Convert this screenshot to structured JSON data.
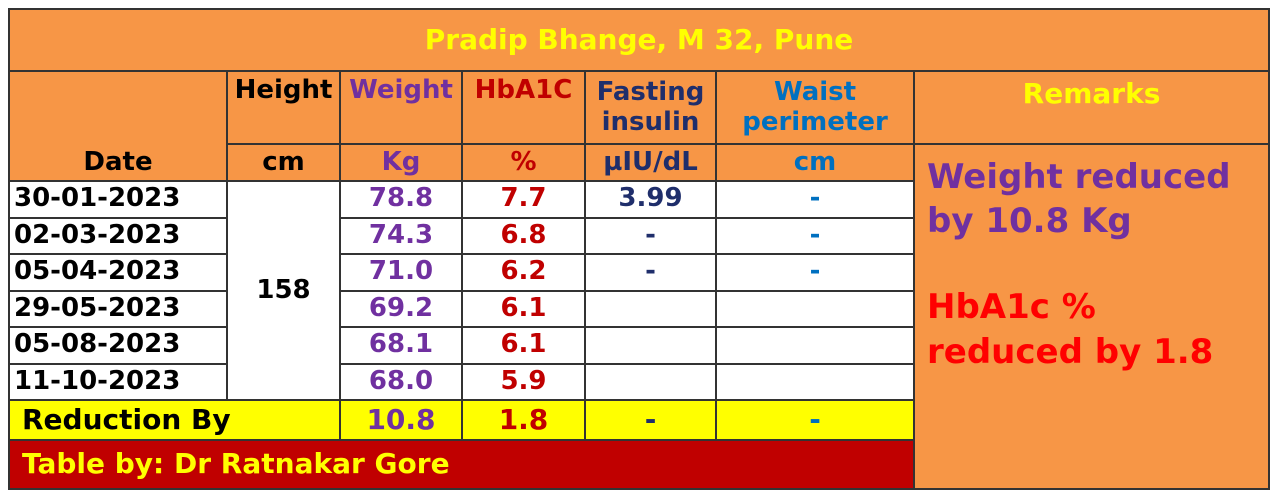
{
  "title": "Pradip Bhange, M 32, Pune",
  "headers": {
    "date": "Date",
    "height": "Height",
    "weight": "Weight",
    "hba1c": "HbA1C",
    "fasting": "Fasting insulin",
    "waist": "Waist perimeter",
    "remarks": "Remarks"
  },
  "units": {
    "height": "cm",
    "weight": "Kg",
    "hba1c": "%",
    "fasting": "µIU/dL",
    "waist": "cm"
  },
  "height_value": "158",
  "rows": [
    {
      "date": "30-01-2023",
      "weight": "78.8",
      "hba1c": "7.7",
      "fasting": "3.99",
      "waist": "-"
    },
    {
      "date": "02-03-2023",
      "weight": "74.3",
      "hba1c": "6.8",
      "fasting": "-",
      "waist": "-"
    },
    {
      "date": "05-04-2023",
      "weight": "71.0",
      "hba1c": "6.2",
      "fasting": "-",
      "waist": "-"
    },
    {
      "date": "29-05-2023",
      "weight": "69.2",
      "hba1c": "6.1",
      "fasting": "",
      "waist": ""
    },
    {
      "date": "05-08-2023",
      "weight": "68.1",
      "hba1c": "6.1",
      "fasting": "",
      "waist": ""
    },
    {
      "date": "11-10-2023",
      "weight": "68.0",
      "hba1c": "5.9",
      "fasting": "",
      "waist": ""
    }
  ],
  "reduction": {
    "label": "Reduction By",
    "weight": "10.8",
    "hba1c": "1.8",
    "fasting": "-",
    "waist": "-"
  },
  "remarks": {
    "weight": "Weight reduced by 10.8 Kg",
    "hba1c": "HbA1c % reduced by 1.8"
  },
  "footer": "Table by: Dr Ratnakar Gore",
  "colors": {
    "orange": "#F79646",
    "yellow": "#FFFF00",
    "footer_red": "#C00000"
  }
}
